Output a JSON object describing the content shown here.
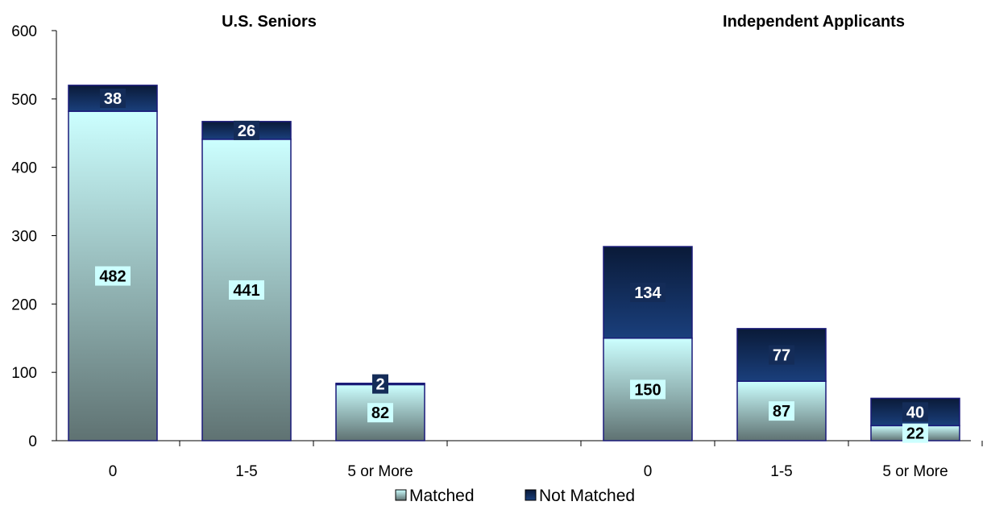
{
  "chart_data": {
    "type": "bar",
    "stacked": true,
    "groups": [
      "U.S. Seniors",
      "Independent Applicants"
    ],
    "categories": [
      "0",
      "1-5",
      "5 or More",
      "0",
      "1-5",
      "5 or More"
    ],
    "category_group": [
      0,
      0,
      0,
      1,
      1,
      1
    ],
    "series": [
      {
        "name": "Matched",
        "values": [
          482,
          441,
          82,
          150,
          87,
          22
        ]
      },
      {
        "name": "Not Matched",
        "values": [
          38,
          26,
          2,
          134,
          77,
          40
        ]
      }
    ],
    "ylim": [
      0,
      600
    ],
    "yticks": [
      "0",
      "100",
      "200",
      "300",
      "400",
      "500",
      "600"
    ],
    "grid": false,
    "legend_position": "bottom",
    "colors": {
      "matched_top": "#ccffff",
      "matched_bottom": "#5f7272",
      "not_matched_top": "#0a1a38",
      "not_matched_bottom": "#1a3f7c",
      "edge": "#1a1a7a"
    }
  }
}
